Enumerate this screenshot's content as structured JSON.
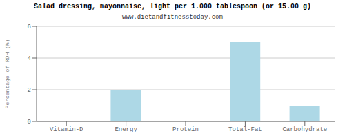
{
  "chart_data": {
    "type": "bar",
    "title": "Salad dressing, mayonnaise, light per 1.000 tablespoon (or 15.00 g)",
    "subtitle": "www.dietandfitnesstoday.com",
    "categories": [
      "Vitamin-D",
      "Energy",
      "Protein",
      "Total-Fat",
      "Carbohydrate"
    ],
    "values": [
      0,
      2.0,
      0,
      5.0,
      1.0
    ],
    "color": "#add8e6",
    "ylabel": "Percentage of RDH (%)",
    "ylim": [
      0,
      6
    ],
    "yticks": [
      0,
      2,
      4,
      6
    ],
    "grid": true
  }
}
